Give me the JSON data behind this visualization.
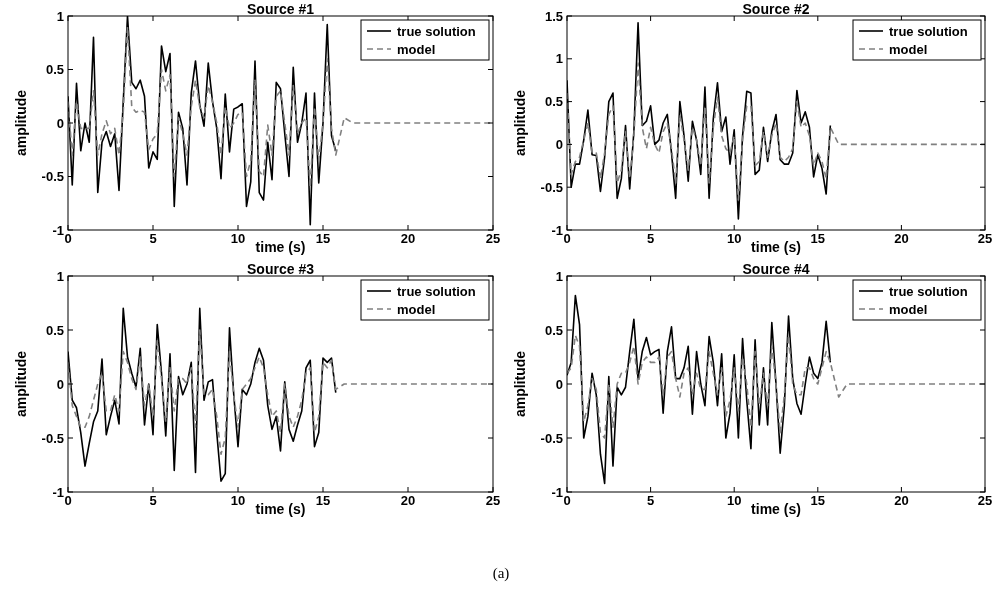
{
  "chart_data": [
    {
      "type": "line",
      "title": "Source #1",
      "xlabel": "time (s)",
      "ylabel": "amplitude",
      "xlim": [
        0,
        25
      ],
      "xticks": [
        0,
        5,
        10,
        15,
        20,
        25
      ],
      "ylim": [
        -1,
        1
      ],
      "yticks": [
        -1,
        -0.5,
        0,
        0.5,
        1
      ],
      "legend": "top right",
      "grid": false,
      "series": [
        {
          "name": "true solution",
          "color": "#000000",
          "line_style": "solid",
          "x": [
            0,
            0.25,
            0.5,
            0.75,
            1,
            1.25,
            1.5,
            1.75,
            2,
            2.25,
            2.5,
            2.75,
            3,
            3.25,
            3.5,
            3.75,
            4,
            4.25,
            4.5,
            4.75,
            5,
            5.25,
            5.5,
            5.75,
            6,
            6.25,
            6.5,
            6.75,
            7,
            7.25,
            7.5,
            7.75,
            8,
            8.25,
            8.5,
            8.75,
            9,
            9.25,
            9.5,
            9.75,
            10,
            10.25,
            10.5,
            10.75,
            11,
            11.25,
            11.5,
            11.75,
            12,
            12.25,
            12.5,
            12.75,
            13,
            13.25,
            13.5,
            13.75,
            14,
            14.25,
            14.5,
            14.75,
            15,
            15.25,
            15.5,
            15.75
          ],
          "values": [
            0.25,
            -0.58,
            0.37,
            -0.26,
            0.0,
            -0.18,
            0.8,
            -0.65,
            -0.18,
            -0.08,
            -0.22,
            -0.1,
            -0.63,
            0.2,
            1.0,
            0.38,
            0.32,
            0.4,
            0.25,
            -0.42,
            -0.27,
            -0.34,
            0.72,
            0.48,
            0.65,
            -0.78,
            0.1,
            -0.05,
            -0.58,
            0.28,
            0.58,
            0.17,
            -0.03,
            0.56,
            0.2,
            -0.05,
            -0.52,
            0.27,
            -0.27,
            0.13,
            0.15,
            0.18,
            -0.78,
            -0.55,
            0.58,
            -0.65,
            -0.72,
            -0.18,
            -0.53,
            0.38,
            0.32,
            -0.1,
            -0.5,
            0.52,
            -0.18,
            0.0,
            0.28,
            -0.95,
            0.28,
            -0.56,
            0.0,
            0.92,
            -0.12,
            -0.26
          ]
        },
        {
          "name": "model",
          "color": "#808080",
          "line_style": "dashed",
          "x": [
            0,
            0.25,
            0.5,
            0.75,
            1,
            1.25,
            1.5,
            1.75,
            2,
            2.25,
            2.5,
            2.75,
            3,
            3.25,
            3.5,
            3.75,
            4,
            4.25,
            4.5,
            4.75,
            5,
            5.25,
            5.5,
            5.75,
            6,
            6.25,
            6.5,
            6.75,
            7,
            7.25,
            7.5,
            7.75,
            8,
            8.25,
            8.5,
            8.75,
            9,
            9.25,
            9.5,
            9.75,
            10,
            10.25,
            10.5,
            10.75,
            11,
            11.25,
            11.5,
            11.75,
            12,
            12.25,
            12.5,
            12.75,
            13,
            13.25,
            13.5,
            13.75,
            14,
            14.25,
            14.5,
            14.75,
            15,
            15.25,
            15.5,
            15.75,
            16.25,
            16.75,
            25
          ],
          "values": [
            0.2,
            -0.3,
            0.2,
            -0.05,
            -0.05,
            -0.05,
            0.3,
            -0.3,
            -0.1,
            0.02,
            -0.1,
            -0.05,
            -0.3,
            0.1,
            0.9,
            0.15,
            0.1,
            0.12,
            0.1,
            -0.25,
            -0.15,
            -0.1,
            0.5,
            0.3,
            0.45,
            -0.5,
            0.05,
            -0.1,
            -0.3,
            0.15,
            0.4,
            0.15,
            0.05,
            0.35,
            0.2,
            0.0,
            -0.3,
            0.15,
            -0.05,
            0.0,
            0.08,
            0.1,
            -0.5,
            -0.35,
            0.4,
            -0.45,
            -0.5,
            -0.02,
            -0.3,
            0.25,
            0.3,
            0.0,
            -0.3,
            0.35,
            -0.1,
            0.0,
            0.05,
            -0.6,
            0.15,
            -0.35,
            0.0,
            0.6,
            -0.05,
            -0.3,
            0.05,
            0.0,
            0.0
          ]
        }
      ]
    },
    {
      "type": "line",
      "title": "Source #2",
      "xlabel": "time (s)",
      "ylabel": "amplitude",
      "xlim": [
        0,
        25
      ],
      "xticks": [
        0,
        5,
        10,
        15,
        20,
        25
      ],
      "ylim": [
        -1,
        1.5
      ],
      "yticks": [
        -1,
        -0.5,
        0,
        0.5,
        1,
        1.5
      ],
      "legend": "top right",
      "grid": false,
      "series": [
        {
          "name": "true solution",
          "color": "#000000",
          "line_style": "solid",
          "x": [
            0,
            0.25,
            0.5,
            0.75,
            1,
            1.25,
            1.5,
            1.75,
            2,
            2.25,
            2.5,
            2.75,
            3,
            3.25,
            3.5,
            3.75,
            4,
            4.25,
            4.5,
            4.75,
            5,
            5.25,
            5.5,
            5.75,
            6,
            6.25,
            6.5,
            6.75,
            7,
            7.25,
            7.5,
            7.75,
            8,
            8.25,
            8.5,
            8.75,
            9,
            9.25,
            9.5,
            9.75,
            10,
            10.25,
            10.5,
            10.75,
            11,
            11.25,
            11.5,
            11.75,
            12,
            12.25,
            12.5,
            12.75,
            13,
            13.25,
            13.5,
            13.75,
            14,
            14.25,
            14.5,
            14.75,
            15,
            15.25,
            15.5,
            15.75
          ],
          "values": [
            0.75,
            -0.5,
            -0.23,
            -0.23,
            0.05,
            0.4,
            -0.12,
            -0.13,
            -0.55,
            -0.15,
            0.5,
            0.6,
            -0.63,
            -0.4,
            0.22,
            -0.52,
            0.15,
            1.42,
            0.22,
            0.27,
            0.45,
            0.0,
            0.05,
            0.25,
            0.35,
            -0.1,
            -0.63,
            0.5,
            0.1,
            -0.43,
            0.27,
            0.05,
            -0.35,
            0.67,
            -0.63,
            0.3,
            0.72,
            0.15,
            0.32,
            -0.23,
            0.17,
            -0.87,
            0.1,
            0.62,
            0.6,
            -0.35,
            -0.3,
            0.2,
            -0.2,
            0.15,
            0.35,
            -0.18,
            -0.23,
            -0.23,
            -0.1,
            0.63,
            0.25,
            0.38,
            0.2,
            -0.38,
            -0.12,
            -0.28,
            -0.58,
            0.22
          ]
        },
        {
          "name": "model",
          "color": "#808080",
          "line_style": "dashed",
          "x": [
            0,
            0.25,
            0.5,
            0.75,
            1,
            1.25,
            1.5,
            1.75,
            2,
            2.25,
            2.5,
            2.75,
            3,
            3.25,
            3.5,
            3.75,
            4,
            4.25,
            4.5,
            4.75,
            5,
            5.25,
            5.5,
            5.75,
            6,
            6.25,
            6.5,
            6.75,
            7,
            7.25,
            7.5,
            7.75,
            8,
            8.25,
            8.5,
            8.75,
            9,
            9.25,
            9.5,
            9.75,
            10,
            10.25,
            10.5,
            10.75,
            11,
            11.25,
            11.5,
            11.75,
            12,
            12.25,
            12.5,
            12.75,
            13,
            13.25,
            13.5,
            13.75,
            14,
            14.25,
            14.5,
            14.75,
            15,
            15.25,
            15.5,
            15.75,
            16.25,
            25
          ],
          "values": [
            0.6,
            -0.35,
            -0.2,
            -0.15,
            0.05,
            0.25,
            -0.1,
            -0.1,
            -0.4,
            -0.1,
            0.35,
            0.45,
            -0.45,
            -0.3,
            0.15,
            -0.4,
            0.1,
            0.95,
            0.2,
            -0.05,
            0.2,
            0.0,
            -0.1,
            0.15,
            0.25,
            -0.05,
            -0.45,
            0.35,
            0.05,
            -0.3,
            0.2,
            0.05,
            -0.25,
            0.45,
            -0.45,
            0.2,
            0.55,
            0.1,
            -0.05,
            -0.1,
            0.1,
            -0.65,
            0.05,
            0.45,
            0.45,
            -0.25,
            -0.2,
            0.15,
            -0.15,
            0.1,
            0.25,
            -0.15,
            -0.2,
            -0.15,
            -0.05,
            0.5,
            0.2,
            0.25,
            0.1,
            -0.25,
            -0.1,
            -0.2,
            -0.4,
            0.2,
            0.0,
            0.0
          ]
        }
      ]
    },
    {
      "type": "line",
      "title": "Source #3",
      "xlabel": "time (s)",
      "ylabel": "amplitude",
      "xlim": [
        0,
        25
      ],
      "xticks": [
        0,
        5,
        10,
        15,
        20,
        25
      ],
      "ylim": [
        -1,
        1
      ],
      "yticks": [
        -1,
        -0.5,
        0,
        0.5,
        1
      ],
      "legend": "top right",
      "grid": false,
      "series": [
        {
          "name": "true solution",
          "color": "#000000",
          "line_style": "solid",
          "x": [
            0,
            0.25,
            0.5,
            0.75,
            1,
            1.25,
            1.5,
            1.75,
            2,
            2.25,
            2.5,
            2.75,
            3,
            3.25,
            3.5,
            3.75,
            4,
            4.25,
            4.5,
            4.75,
            5,
            5.25,
            5.5,
            5.75,
            6,
            6.25,
            6.5,
            6.75,
            7,
            7.25,
            7.5,
            7.75,
            8,
            8.25,
            8.5,
            8.75,
            9,
            9.25,
            9.5,
            9.75,
            10,
            10.25,
            10.5,
            10.75,
            11,
            11.25,
            11.5,
            11.75,
            12,
            12.25,
            12.5,
            12.75,
            13,
            13.25,
            13.5,
            13.75,
            14,
            14.25,
            14.5,
            14.75,
            15,
            15.25,
            15.5,
            15.75
          ],
          "values": [
            0.3,
            -0.15,
            -0.22,
            -0.45,
            -0.76,
            -0.55,
            -0.35,
            -0.25,
            0.23,
            -0.47,
            -0.3,
            -0.15,
            -0.37,
            0.7,
            0.25,
            0.1,
            -0.03,
            0.33,
            -0.38,
            0.0,
            -0.47,
            0.55,
            0.1,
            -0.48,
            0.28,
            -0.8,
            0.07,
            -0.1,
            0.0,
            0.2,
            -0.82,
            0.7,
            -0.15,
            0.02,
            0.04,
            -0.45,
            -0.9,
            -0.83,
            0.52,
            -0.1,
            -0.58,
            -0.05,
            -0.1,
            0.0,
            0.2,
            0.33,
            0.22,
            -0.2,
            -0.42,
            -0.3,
            -0.62,
            0.02,
            -0.42,
            -0.53,
            -0.38,
            -0.25,
            0.15,
            0.22,
            -0.58,
            -0.45,
            0.24,
            0.2,
            0.24,
            -0.08
          ]
        },
        {
          "name": "model",
          "color": "#808080",
          "line_style": "dashed",
          "x": [
            0,
            0.25,
            0.5,
            0.75,
            1,
            1.25,
            1.5,
            1.75,
            2,
            2.25,
            2.5,
            2.75,
            3,
            3.25,
            3.5,
            3.75,
            4,
            4.25,
            4.5,
            4.75,
            5,
            5.25,
            5.5,
            5.75,
            6,
            6.25,
            6.5,
            6.75,
            7,
            7.25,
            7.5,
            7.75,
            8,
            8.25,
            8.5,
            8.75,
            9,
            9.25,
            9.5,
            9.75,
            10,
            10.25,
            10.5,
            10.75,
            11,
            11.25,
            11.5,
            11.75,
            12,
            12.25,
            12.5,
            12.75,
            13,
            13.25,
            13.5,
            13.75,
            14,
            14.25,
            14.5,
            14.75,
            15,
            15.25,
            15.5,
            15.75,
            16.25,
            25
          ],
          "values": [
            0.2,
            -0.2,
            -0.3,
            -0.4,
            -0.4,
            -0.3,
            -0.15,
            0.0,
            0.1,
            -0.25,
            -0.25,
            -0.1,
            -0.25,
            0.3,
            0.2,
            0.05,
            -0.05,
            0.25,
            -0.2,
            0.0,
            -0.3,
            0.4,
            0.05,
            -0.35,
            0.15,
            -0.25,
            0.05,
            0.05,
            0.0,
            0.15,
            -0.4,
            0.5,
            -0.1,
            -0.1,
            -0.05,
            -0.3,
            -0.65,
            -0.5,
            0.3,
            -0.1,
            -0.4,
            -0.05,
            0.0,
            0.05,
            0.15,
            0.25,
            0.15,
            -0.1,
            -0.3,
            -0.25,
            -0.45,
            0.0,
            -0.3,
            -0.4,
            -0.3,
            -0.15,
            0.1,
            0.15,
            -0.45,
            -0.3,
            0.2,
            0.15,
            0.22,
            -0.05,
            0.0,
            0.0
          ]
        }
      ]
    },
    {
      "type": "line",
      "title": "Source #4",
      "xlabel": "time (s)",
      "ylabel": "amplitude",
      "xlim": [
        0,
        25
      ],
      "xticks": [
        0,
        5,
        10,
        15,
        20,
        25
      ],
      "ylim": [
        -1,
        1
      ],
      "yticks": [
        -1,
        -0.5,
        0,
        0.5,
        1
      ],
      "legend": "top right",
      "grid": false,
      "annotations": [
        "(a)"
      ],
      "series": [
        {
          "name": "true solution",
          "color": "#000000",
          "line_style": "solid",
          "x": [
            0,
            0.25,
            0.5,
            0.75,
            1,
            1.25,
            1.5,
            1.75,
            2,
            2.25,
            2.5,
            2.75,
            3,
            3.25,
            3.5,
            3.75,
            4,
            4.25,
            4.5,
            4.75,
            5,
            5.25,
            5.5,
            5.75,
            6,
            6.25,
            6.5,
            6.75,
            7,
            7.25,
            7.5,
            7.75,
            8,
            8.25,
            8.5,
            8.75,
            9,
            9.25,
            9.5,
            9.75,
            10,
            10.25,
            10.5,
            10.75,
            11,
            11.25,
            11.5,
            11.75,
            12,
            12.25,
            12.5,
            12.75,
            13,
            13.25,
            13.5,
            13.75,
            14,
            14.25,
            14.5,
            14.75,
            15,
            15.25,
            15.5,
            15.75
          ],
          "values": [
            0.08,
            0.2,
            0.82,
            0.55,
            -0.5,
            -0.3,
            0.1,
            -0.1,
            -0.65,
            -0.92,
            0.07,
            -0.76,
            -0.03,
            -0.1,
            -0.03,
            0.3,
            0.6,
            0.05,
            0.3,
            0.43,
            0.27,
            0.3,
            0.32,
            -0.27,
            0.3,
            0.53,
            0.05,
            0.05,
            0.15,
            0.35,
            -0.28,
            0.3,
            0.0,
            -0.2,
            0.44,
            0.2,
            -0.2,
            0.28,
            -0.5,
            -0.27,
            0.27,
            -0.5,
            0.42,
            -0.15,
            -0.6,
            0.41,
            -0.38,
            0.15,
            -0.38,
            0.57,
            0.0,
            -0.64,
            -0.2,
            0.63,
            0.05,
            -0.18,
            -0.28,
            0.0,
            0.25,
            0.1,
            0.05,
            0.2,
            0.58,
            0.2
          ]
        },
        {
          "name": "model",
          "color": "#808080",
          "line_style": "dashed",
          "x": [
            0,
            0.25,
            0.5,
            0.75,
            1,
            1.25,
            1.5,
            1.75,
            2,
            2.25,
            2.5,
            2.75,
            3,
            3.25,
            3.5,
            3.75,
            4,
            4.25,
            4.5,
            4.75,
            5,
            5.25,
            5.5,
            5.75,
            6,
            6.25,
            6.5,
            6.75,
            7,
            7.25,
            7.5,
            7.75,
            8,
            8.25,
            8.5,
            8.75,
            9,
            9.25,
            9.5,
            9.75,
            10,
            10.25,
            10.5,
            10.75,
            11,
            11.25,
            11.5,
            11.75,
            12,
            12.25,
            12.5,
            12.75,
            13,
            13.25,
            13.5,
            13.75,
            14,
            14.25,
            14.5,
            14.75,
            15,
            15.25,
            15.5,
            15.75,
            16.25,
            16.75,
            25
          ],
          "values": [
            0.1,
            0.15,
            0.45,
            0.35,
            -0.35,
            -0.2,
            0.05,
            -0.05,
            -0.45,
            -0.5,
            0.0,
            -0.4,
            0.0,
            0.1,
            0.1,
            0.2,
            0.35,
            0.0,
            0.2,
            0.25,
            0.2,
            0.2,
            0.25,
            -0.1,
            0.25,
            0.3,
            0.05,
            -0.12,
            0.1,
            0.15,
            -0.1,
            0.1,
            -0.05,
            -0.05,
            0.3,
            0.1,
            -0.1,
            0.15,
            -0.3,
            -0.15,
            0.15,
            -0.25,
            0.25,
            0.0,
            -0.4,
            0.3,
            -0.2,
            0.1,
            -0.2,
            0.35,
            0.0,
            -0.45,
            -0.1,
            0.45,
            0.0,
            -0.1,
            -0.1,
            0.15,
            0.15,
            0.05,
            0.0,
            0.15,
            0.3,
            0.2,
            -0.12,
            0.0,
            0.0
          ]
        }
      ]
    }
  ]
}
